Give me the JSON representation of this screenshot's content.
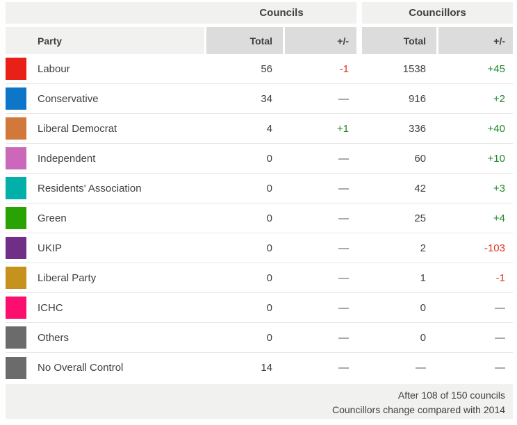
{
  "table": {
    "group_headers": {
      "councils": "Councils",
      "councillors": "Councillors"
    },
    "columns": {
      "party": "Party",
      "total": "Total",
      "change": "+/-"
    },
    "rows": [
      {
        "party": "Labour",
        "color": "#e82017",
        "councils_total": "56",
        "councils_change": "-1",
        "councillors_total": "1538",
        "councillors_change": "+45"
      },
      {
        "party": "Conservative",
        "color": "#0d76c8",
        "councils_total": "34",
        "councils_change": "—",
        "councillors_total": "916",
        "councillors_change": "+2"
      },
      {
        "party": "Liberal Democrat",
        "color": "#d2783a",
        "councils_total": "4",
        "councils_change": "+1",
        "councillors_total": "336",
        "councillors_change": "+40"
      },
      {
        "party": "Independent",
        "color": "#cb68ba",
        "councils_total": "0",
        "councils_change": "—",
        "councillors_total": "60",
        "councillors_change": "+10"
      },
      {
        "party": "Residents' Association",
        "color": "#02afa9",
        "councils_total": "0",
        "councils_change": "—",
        "councillors_total": "42",
        "councillors_change": "+3"
      },
      {
        "party": "Green",
        "color": "#28a303",
        "councils_total": "0",
        "councils_change": "—",
        "councillors_total": "25",
        "councillors_change": "+4"
      },
      {
        "party": "UKIP",
        "color": "#702e87",
        "councils_total": "0",
        "councils_change": "—",
        "councillors_total": "2",
        "councillors_change": "-103"
      },
      {
        "party": "Liberal Party",
        "color": "#c6921e",
        "councils_total": "0",
        "councils_change": "—",
        "councillors_total": "1",
        "councillors_change": "-1"
      },
      {
        "party": "ICHC",
        "color": "#fc0d70",
        "councils_total": "0",
        "councils_change": "—",
        "councillors_total": "0",
        "councillors_change": "—"
      },
      {
        "party": "Others",
        "color": "#6b6b6b",
        "councils_total": "0",
        "councils_change": "—",
        "councillors_total": "0",
        "councillors_change": "—"
      },
      {
        "party": "No Overall Control",
        "color": "#6b6b6b",
        "councils_total": "14",
        "councils_change": "—",
        "councillors_total": "—",
        "councillors_change": "—"
      }
    ],
    "footer": {
      "line1": "After 108 of 150 councils",
      "line2": "Councillors change compared with 2014"
    }
  },
  "colors": {
    "positive_change": "#1e8a28",
    "negative_change": "#e0321e",
    "header_bg": "#f1f1f0",
    "subheader_bg": "#dcdcdc",
    "footer_bg": "#f1f1f0",
    "text": "#404040"
  },
  "chart_data": {
    "type": "table",
    "columns": [
      "Party",
      "Councils Total",
      "Councils +/-",
      "Councillors Total",
      "Councillors +/-"
    ],
    "rows": [
      [
        "Labour",
        56,
        -1,
        1538,
        45
      ],
      [
        "Conservative",
        34,
        null,
        916,
        2
      ],
      [
        "Liberal Democrat",
        4,
        1,
        336,
        40
      ],
      [
        "Independent",
        0,
        null,
        60,
        10
      ],
      [
        "Residents' Association",
        0,
        null,
        42,
        3
      ],
      [
        "Green",
        0,
        null,
        25,
        4
      ],
      [
        "UKIP",
        0,
        null,
        2,
        -103
      ],
      [
        "Liberal Party",
        0,
        null,
        1,
        -1
      ],
      [
        "ICHC",
        0,
        null,
        0,
        null
      ],
      [
        "Others",
        0,
        null,
        0,
        null
      ],
      [
        "No Overall Control",
        14,
        null,
        null,
        null
      ]
    ],
    "notes": [
      "After 108 of 150 councils",
      "Councillors change compared with 2014"
    ]
  }
}
